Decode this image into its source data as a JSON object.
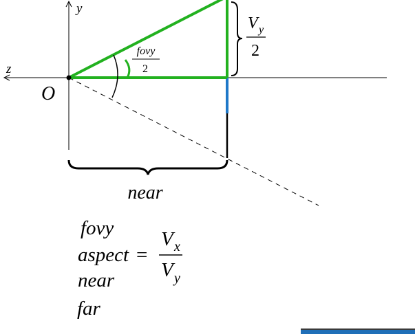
{
  "axes": {
    "y_label": "y",
    "z_label": "z",
    "origin_label": "O"
  },
  "angle_label": {
    "numerator": "fovy",
    "denominator": "2"
  },
  "half_height_label": {
    "numerator_base": "V",
    "numerator_sub": "y",
    "denominator": "2"
  },
  "near_label": "near",
  "parameters": {
    "fovy": "fovy",
    "aspect": "aspect",
    "equals": "=",
    "aspect_num_base": "V",
    "aspect_num_sub": "x",
    "aspect_den_base": "V",
    "aspect_den_sub": "y",
    "near": "near",
    "far": "far"
  },
  "colors": {
    "frustum_green": "#22b11f",
    "image_plane_blue": "#1f78c8",
    "axis": "#000000",
    "corner_bar": "#1f6fb8"
  }
}
